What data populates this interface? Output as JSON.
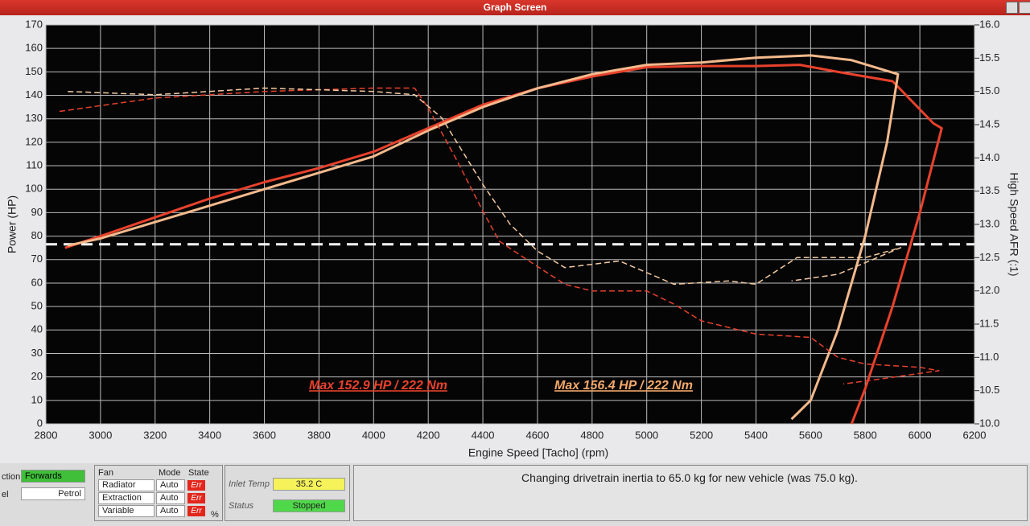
{
  "window": {
    "title": "Graph Screen"
  },
  "chart_data": {
    "type": "line",
    "xlabel": "Engine Speed [Tacho] (rpm)",
    "ylabel": "Power (HP)",
    "y2label": "High Speed AFR (:1)",
    "xlim": [
      2800,
      6200
    ],
    "xticks": [
      2800,
      3000,
      3200,
      3400,
      3600,
      3800,
      4000,
      4200,
      4400,
      4600,
      4800,
      5000,
      5200,
      5400,
      5600,
      5800,
      6000,
      6200
    ],
    "ylim": [
      0,
      170
    ],
    "yticks": [
      0,
      10,
      20,
      30,
      40,
      50,
      60,
      70,
      80,
      90,
      100,
      110,
      120,
      130,
      140,
      150,
      160,
      170
    ],
    "y2lim": [
      10,
      16
    ],
    "y2ticks": [
      {
        "value": 10,
        "label": "10.0"
      },
      10.5,
      {
        "value": 11,
        "label": "11.0"
      },
      11.5,
      {
        "value": 12,
        "label": "12.0"
      },
      12.5,
      {
        "value": 13,
        "label": "13.0"
      },
      13.5,
      {
        "value": 14,
        "label": "14.0"
      },
      14.5,
      {
        "value": 15,
        "label": "15.0"
      },
      15.5,
      {
        "value": 16,
        "label": "16.0"
      }
    ],
    "grid": true,
    "series": [
      {
        "color": "#e8412c",
        "dash": false,
        "x": [
          2870,
          3000,
          3200,
          3400,
          3600,
          3800,
          4000,
          4200,
          4400,
          4600,
          4800,
          5000,
          5200,
          5400,
          5560,
          5700,
          5900,
          6050,
          6080,
          6000,
          5900,
          5800,
          5750
        ],
        "values": [
          75,
          80,
          88,
          96,
          103,
          109,
          116,
          126,
          136,
          143,
          148,
          152,
          152.5,
          152.5,
          153,
          150,
          146,
          128,
          126,
          90,
          50,
          15,
          0
        ]
      },
      {
        "color": "#f3b98c",
        "dash": false,
        "x": [
          2880,
          3000,
          3200,
          3400,
          3600,
          3800,
          4000,
          4200,
          4400,
          4600,
          4800,
          5000,
          5200,
          5400,
          5600,
          5750,
          5920,
          5880,
          5800,
          5700,
          5600,
          5530
        ],
        "values": [
          76,
          79,
          86,
          93,
          100,
          107,
          114,
          125,
          135,
          143,
          149,
          153,
          154,
          156,
          157,
          155,
          149,
          120,
          80,
          40,
          10,
          2
        ]
      },
      {
        "color": "#e8412c",
        "dash": true,
        "axis": "y2",
        "x": [
          2850,
          3200,
          3600,
          4000,
          4150,
          4200,
          4300,
          4400,
          4460,
          4550,
          4700,
          4800,
          5000,
          5100,
          5200,
          5400,
          5600,
          5700,
          5800,
          6000,
          6070,
          5900,
          5720
        ],
        "values": [
          14.7,
          14.9,
          15.0,
          15.05,
          15.05,
          14.75,
          14.0,
          13.2,
          12.75,
          12.5,
          12.1,
          12.0,
          12.0,
          11.8,
          11.55,
          11.35,
          11.3,
          11.0,
          10.9,
          10.85,
          10.8,
          10.7,
          10.6
        ]
      },
      {
        "color": "#f3c9a0",
        "dash": true,
        "axis": "y2",
        "x": [
          2880,
          3200,
          3600,
          4000,
          4150,
          4250,
          4400,
          4500,
          4600,
          4700,
          4900,
          5100,
          5300,
          5400,
          5550,
          5800,
          5930,
          5700,
          5530
        ],
        "values": [
          15.0,
          14.95,
          15.05,
          15.0,
          14.95,
          14.6,
          13.6,
          13.0,
          12.6,
          12.35,
          12.45,
          12.1,
          12.15,
          12.1,
          12.5,
          12.5,
          12.65,
          12.25,
          12.15
        ]
      }
    ],
    "reference_line": {
      "value": 76.5,
      "color": "#ffffff"
    },
    "annotations": [
      {
        "text": "Max 152.9 HP  / 222 Nm",
        "color": "#e8412c"
      },
      {
        "text": "Max 156.4 HP  / 222 Nm",
        "color": "#f3a86a"
      }
    ]
  },
  "controls": {
    "direction_label": "ction",
    "direction": "Forwards",
    "fuel_label": "el",
    "fuel": "Petrol",
    "fan_headers": [
      "Fan",
      "Mode",
      "State"
    ],
    "fans": [
      [
        "Radiator",
        "Auto",
        "Err"
      ],
      [
        "Extraction",
        "Auto",
        "Err"
      ],
      [
        "Variable",
        "Auto",
        "Err"
      ]
    ],
    "percent": "%",
    "inlet_temp_label": "Inlet Temp",
    "inlet_temp": "35.2 C",
    "status_label": "Status",
    "status": "Stopped",
    "message": "Changing drivetrain inertia to 65.0 kg for new vehicle (was 75.0 kg)."
  }
}
